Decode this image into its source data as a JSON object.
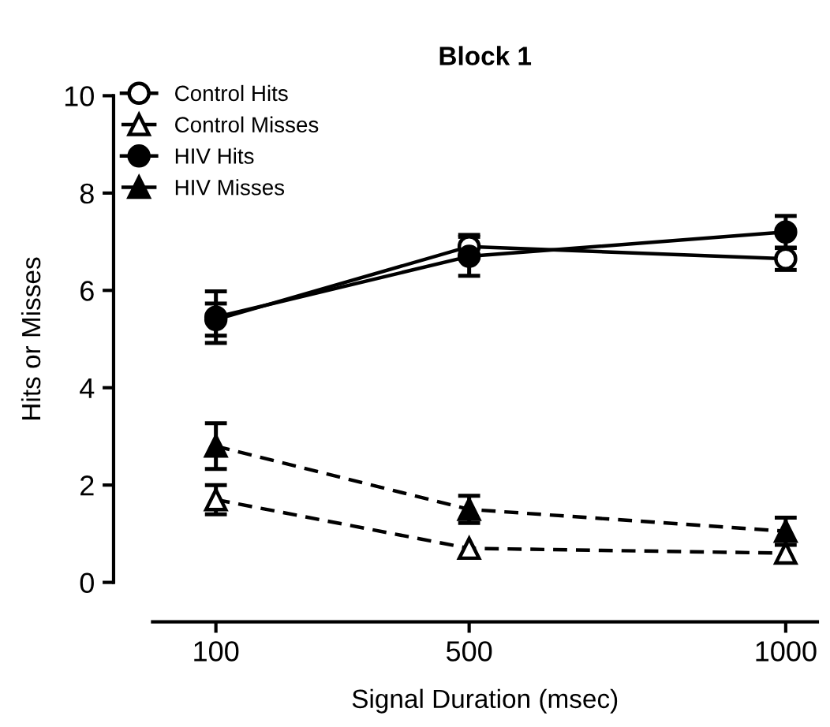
{
  "chart_data": {
    "type": "line",
    "title": "Block 1",
    "xlabel": "Signal Duration (msec)",
    "ylabel": "Hits or Misses",
    "x": [
      100,
      500,
      1000
    ],
    "xlim": [
      0,
      1050
    ],
    "xticks": [
      100,
      500,
      1000
    ],
    "ylim": [
      0,
      10
    ],
    "yticks": [
      0,
      2,
      4,
      6,
      8,
      10
    ],
    "grid": false,
    "legend": "top left",
    "series": [
      {
        "name": "Control Hits",
        "color": "#000000",
        "marker": "circle",
        "line_style": "solid",
        "values": [
          5.4,
          6.9,
          6.65
        ],
        "errors": [
          0.33,
          0.24,
          0.23
        ]
      },
      {
        "name": "Control Misses",
        "color": "#000000",
        "marker": "triangle",
        "line_style": "dashed",
        "values": [
          1.7,
          0.7,
          0.6
        ],
        "errors": [
          0.3,
          null,
          null
        ]
      },
      {
        "name": "HIV Hits",
        "color": "#000000",
        "marker": "circle",
        "line_style": "solid",
        "values": [
          5.45,
          6.7,
          7.2
        ],
        "errors": [
          0.53,
          0.4,
          0.33
        ]
      },
      {
        "name": "HIV Misses",
        "color": "#000000",
        "marker": "triangle",
        "line_style": "dashed",
        "values": [
          2.8,
          1.5,
          1.05
        ],
        "errors": [
          0.47,
          0.28,
          0.28
        ]
      }
    ]
  }
}
